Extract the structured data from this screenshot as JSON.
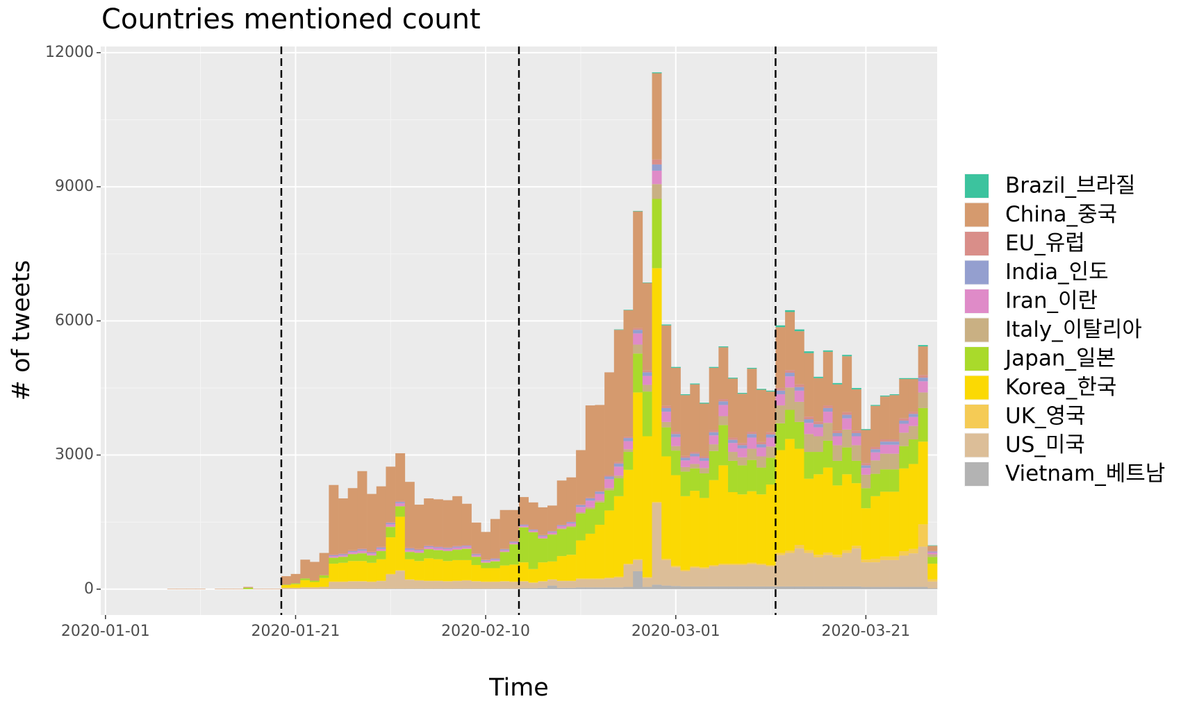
{
  "chart_data": {
    "type": "stacked_histogram",
    "title": "Countries mentioned count",
    "x_label": "Time",
    "y_label": "# of tweets",
    "x": [
      "2020-01-01",
      "2020-01-02",
      "2020-01-03",
      "2020-01-04",
      "2020-01-05",
      "2020-01-06",
      "2020-01-07",
      "2020-01-08",
      "2020-01-09",
      "2020-01-10",
      "2020-01-11",
      "2020-01-12",
      "2020-01-13",
      "2020-01-14",
      "2020-01-15",
      "2020-01-16",
      "2020-01-17",
      "2020-01-18",
      "2020-01-19",
      "2020-01-20",
      "2020-01-21",
      "2020-01-22",
      "2020-01-23",
      "2020-01-24",
      "2020-01-25",
      "2020-01-26",
      "2020-01-27",
      "2020-01-28",
      "2020-01-29",
      "2020-01-30",
      "2020-01-31",
      "2020-02-01",
      "2020-02-02",
      "2020-02-03",
      "2020-02-04",
      "2020-02-05",
      "2020-02-06",
      "2020-02-07",
      "2020-02-08",
      "2020-02-09",
      "2020-02-10",
      "2020-02-11",
      "2020-02-12",
      "2020-02-13",
      "2020-02-14",
      "2020-02-15",
      "2020-02-16",
      "2020-02-17",
      "2020-02-18",
      "2020-02-19",
      "2020-02-20",
      "2020-02-21",
      "2020-02-22",
      "2020-02-23",
      "2020-02-24",
      "2020-02-25",
      "2020-02-26",
      "2020-02-27",
      "2020-02-28",
      "2020-02-29",
      "2020-03-01",
      "2020-03-02",
      "2020-03-03",
      "2020-03-04",
      "2020-03-05",
      "2020-03-06",
      "2020-03-07",
      "2020-03-08",
      "2020-03-09",
      "2020-03-10",
      "2020-03-11",
      "2020-03-12",
      "2020-03-13",
      "2020-03-14",
      "2020-03-15",
      "2020-03-16",
      "2020-03-17",
      "2020-03-18",
      "2020-03-19",
      "2020-03-20",
      "2020-03-21",
      "2020-03-22",
      "2020-03-23",
      "2020-03-24",
      "2020-03-25",
      "2020-03-26",
      "2020-03-27",
      "2020-03-28"
    ],
    "series": [
      {
        "name": "Brazil_브라질",
        "color": "#3cc39e",
        "values": [
          0,
          0,
          0,
          0,
          0,
          0,
          0,
          0,
          0,
          0,
          0,
          0,
          0,
          0,
          0,
          0,
          0,
          0,
          0,
          0,
          0,
          0,
          0,
          0,
          0,
          0,
          0,
          0,
          0,
          0,
          0,
          0,
          0,
          0,
          0,
          0,
          0,
          0,
          0,
          0,
          0,
          0,
          0,
          0,
          0,
          0,
          0,
          0,
          0,
          0,
          0,
          0,
          0,
          0,
          10,
          10,
          10,
          10,
          20,
          20,
          20,
          20,
          20,
          20,
          20,
          20,
          20,
          20,
          20,
          20,
          20,
          40,
          40,
          40,
          40,
          30,
          30,
          30,
          30,
          30,
          20,
          20,
          20,
          20,
          20,
          20,
          30,
          10
        ]
      },
      {
        "name": "China_중국",
        "color": "#d59a6e",
        "values": [
          0,
          0,
          0,
          0,
          0,
          0,
          0,
          10,
          10,
          10,
          10,
          0,
          10,
          10,
          10,
          20,
          10,
          10,
          10,
          190,
          210,
          420,
          420,
          500,
          1550,
          1230,
          1390,
          1730,
          1290,
          1350,
          1240,
          1070,
          1470,
          990,
          1050,
          1050,
          1050,
          1110,
          920,
          690,
          620,
          880,
          870,
          700,
          610,
          600,
          620,
          570,
          990,
          990,
          1210,
          2060,
          1920,
          2300,
          2960,
          2830,
          2610,
          1960,
          1930,
          1800,
          1430,
          1360,
          1510,
          1180,
          1390,
          1160,
          1320,
          1100,
          1410,
          1170,
          910,
          1360,
          1300,
          1190,
          1420,
          970,
          1200,
          1030,
          1250,
          920,
          740,
          920,
          960,
          990,
          880,
          730,
          640,
          110
        ]
      },
      {
        "name": "EU_유럽",
        "color": "#d98e89",
        "values": [
          0,
          0,
          0,
          0,
          0,
          0,
          0,
          0,
          0,
          0,
          0,
          0,
          0,
          0,
          0,
          0,
          0,
          0,
          0,
          0,
          0,
          0,
          0,
          0,
          20,
          20,
          20,
          20,
          20,
          20,
          20,
          20,
          20,
          20,
          20,
          20,
          20,
          20,
          20,
          20,
          10,
          10,
          10,
          10,
          10,
          10,
          10,
          10,
          10,
          10,
          20,
          20,
          20,
          30,
          30,
          30,
          40,
          40,
          110,
          50,
          50,
          40,
          40,
          40,
          50,
          50,
          50,
          50,
          50,
          50,
          50,
          60,
          60,
          60,
          60,
          60,
          60,
          60,
          60,
          60,
          50,
          50,
          50,
          50,
          50,
          50,
          60,
          20
        ]
      },
      {
        "name": "India_인도",
        "color": "#949fcf",
        "values": [
          0,
          0,
          0,
          0,
          0,
          0,
          0,
          0,
          0,
          0,
          0,
          0,
          0,
          0,
          0,
          0,
          0,
          0,
          0,
          0,
          0,
          0,
          0,
          0,
          20,
          20,
          20,
          30,
          20,
          30,
          30,
          30,
          30,
          20,
          20,
          20,
          20,
          20,
          20,
          20,
          20,
          20,
          20,
          20,
          20,
          20,
          20,
          20,
          20,
          30,
          40,
          50,
          50,
          60,
          70,
          70,
          80,
          80,
          140,
          80,
          70,
          60,
          60,
          60,
          70,
          80,
          70,
          70,
          80,
          70,
          70,
          80,
          80,
          80,
          80,
          70,
          80,
          70,
          80,
          70,
          60,
          70,
          70,
          70,
          70,
          70,
          80,
          20
        ]
      },
      {
        "name": "Iran_이란",
        "color": "#df8bc8",
        "values": [
          0,
          0,
          0,
          0,
          0,
          0,
          0,
          0,
          0,
          0,
          0,
          0,
          0,
          0,
          0,
          0,
          0,
          0,
          0,
          0,
          0,
          0,
          0,
          0,
          30,
          30,
          40,
          50,
          40,
          40,
          50,
          60,
          40,
          40,
          40,
          40,
          40,
          40,
          40,
          30,
          30,
          30,
          30,
          30,
          30,
          30,
          40,
          40,
          50,
          60,
          120,
          150,
          150,
          200,
          200,
          180,
          250,
          200,
          300,
          230,
          200,
          150,
          170,
          160,
          200,
          250,
          200,
          200,
          250,
          200,
          200,
          250,
          250,
          250,
          250,
          200,
          250,
          200,
          250,
          200,
          150,
          180,
          200,
          200,
          200,
          200,
          250,
          40
        ]
      },
      {
        "name": "Italy_이탈리아",
        "color": "#c9b083",
        "values": [
          0,
          0,
          0,
          0,
          0,
          0,
          0,
          0,
          0,
          0,
          0,
          0,
          0,
          0,
          0,
          0,
          0,
          0,
          0,
          0,
          0,
          0,
          0,
          0,
          10,
          10,
          10,
          10,
          10,
          10,
          10,
          10,
          10,
          10,
          10,
          10,
          10,
          10,
          10,
          10,
          10,
          10,
          10,
          10,
          10,
          10,
          10,
          10,
          20,
          20,
          30,
          40,
          40,
          50,
          60,
          60,
          200,
          150,
          330,
          120,
          100,
          100,
          100,
          120,
          150,
          200,
          200,
          180,
          250,
          250,
          250,
          400,
          500,
          450,
          400,
          350,
          400,
          350,
          400,
          350,
          300,
          300,
          350,
          350,
          300,
          300,
          350,
          60
        ]
      },
      {
        "name": "Japan_일본",
        "color": "#a9da2b",
        "values": [
          0,
          0,
          0,
          0,
          0,
          0,
          0,
          0,
          0,
          0,
          0,
          0,
          0,
          0,
          0,
          30,
          0,
          0,
          0,
          10,
          20,
          40,
          30,
          60,
          130,
          130,
          150,
          170,
          160,
          180,
          230,
          230,
          160,
          180,
          200,
          200,
          220,
          230,
          250,
          180,
          120,
          150,
          300,
          450,
          780,
          820,
          530,
          600,
          600,
          620,
          600,
          550,
          500,
          450,
          400,
          400,
          870,
          1000,
          1550,
          650,
          550,
          550,
          500,
          550,
          650,
          900,
          700,
          650,
          700,
          600,
          600,
          600,
          650,
          600,
          600,
          500,
          600,
          550,
          600,
          500,
          450,
          500,
          500,
          500,
          500,
          550,
          750,
          150
        ]
      },
      {
        "name": "Korea_한국",
        "color": "#fbd903",
        "values": [
          0,
          0,
          0,
          0,
          0,
          0,
          0,
          0,
          0,
          0,
          0,
          0,
          0,
          0,
          0,
          0,
          0,
          0,
          0,
          60,
          80,
          160,
          120,
          200,
          400,
          420,
          450,
          450,
          420,
          480,
          820,
          1200,
          450,
          430,
          500,
          480,
          450,
          460,
          450,
          360,
          300,
          300,
          350,
          380,
          420,
          300,
          420,
          400,
          550,
          580,
          850,
          1000,
          1200,
          1500,
          1800,
          2100,
          3730,
          3150,
          5230,
          2290,
          2030,
          1650,
          1690,
          1550,
          1900,
          2200,
          1600,
          1550,
          1600,
          1550,
          1800,
          2300,
          2500,
          2150,
          1600,
          1800,
          1900,
          1550,
          1700,
          1400,
          1150,
          1400,
          1450,
          1450,
          1850,
          1900,
          1850,
          350
        ]
      },
      {
        "name": "UK_영국",
        "color": "#f5cb55",
        "values": [
          0,
          0,
          0,
          0,
          0,
          0,
          0,
          0,
          0,
          0,
          0,
          0,
          0,
          0,
          0,
          0,
          0,
          0,
          0,
          0,
          0,
          0,
          0,
          0,
          10,
          10,
          10,
          10,
          10,
          10,
          10,
          10,
          10,
          10,
          10,
          10,
          10,
          10,
          10,
          10,
          10,
          10,
          10,
          10,
          10,
          10,
          10,
          10,
          10,
          10,
          20,
          20,
          20,
          20,
          20,
          20,
          20,
          20,
          20,
          30,
          30,
          30,
          30,
          30,
          30,
          30,
          30,
          30,
          30,
          30,
          30,
          50,
          50,
          80,
          60,
          60,
          60,
          60,
          60,
          60,
          60,
          80,
          80,
          80,
          100,
          100,
          500,
          50
        ]
      },
      {
        "name": "US_미국",
        "color": "#dcbe98",
        "values": [
          0,
          0,
          0,
          0,
          0,
          0,
          0,
          0,
          0,
          0,
          0,
          0,
          0,
          0,
          0,
          0,
          0,
          0,
          0,
          30,
          30,
          40,
          40,
          50,
          150,
          150,
          160,
          160,
          150,
          170,
          320,
          400,
          200,
          180,
          170,
          170,
          160,
          170,
          180,
          160,
          150,
          150,
          160,
          150,
          150,
          120,
          140,
          130,
          150,
          150,
          180,
          180,
          180,
          200,
          220,
          500,
          250,
          200,
          1830,
          570,
          420,
          340,
          420,
          400,
          450,
          480,
          480,
          480,
          500,
          480,
          450,
          700,
          750,
          850,
          750,
          650,
          700,
          650,
          750,
          850,
          550,
          550,
          600,
          600,
          700,
          750,
          900,
          150
        ]
      },
      {
        "name": "Vietnam_베트남",
        "color": "#b3b3b3",
        "values": [
          0,
          0,
          0,
          0,
          0,
          0,
          0,
          0,
          0,
          0,
          0,
          0,
          0,
          0,
          0,
          0,
          0,
          0,
          0,
          0,
          0,
          0,
          0,
          0,
          10,
          10,
          10,
          10,
          10,
          10,
          10,
          10,
          10,
          10,
          10,
          10,
          10,
          10,
          10,
          10,
          10,
          10,
          10,
          10,
          20,
          20,
          30,
          80,
          30,
          30,
          40,
          40,
          40,
          40,
          40,
          50,
          400,
          50,
          100,
          80,
          70,
          60,
          60,
          60,
          60,
          60,
          60,
          60,
          60,
          60,
          60,
          60,
          60,
          60,
          60,
          60,
          60,
          60,
          60,
          60,
          50,
          50,
          50,
          50,
          50,
          50,
          50,
          20
        ]
      }
    ],
    "stacked": true,
    "xlim": [
      "2020-01-01",
      "2020-03-28"
    ],
    "xticks": [
      "2020-01-01",
      "2020-01-21",
      "2020-02-10",
      "2020-03-01",
      "2020-03-21"
    ],
    "ylim": [
      -578,
      12138
    ],
    "yticks": [
      0,
      3000,
      6000,
      9000,
      12000
    ],
    "vlines": [
      "2020-01-20",
      "2020-02-14",
      "2020-03-12"
    ],
    "grid": true,
    "legend": "right"
  }
}
